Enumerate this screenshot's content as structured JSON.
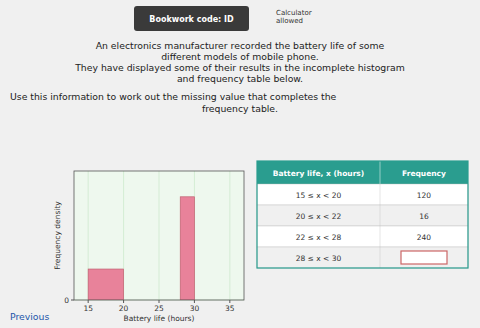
{
  "chart_data": {
    "type": "histogram",
    "title": [
      "An electronics manufacturer recorded the battery life of some",
      "different models of mobile phone.",
      "They have displayed some of their results in the incomplete histogram",
      "and frequency table below."
    ],
    "annotations": [
      "Bookwork code: ID",
      "Calculator\nallowed",
      "Use this information to work out the missing value that completes the",
      "frequency table.",
      "Previous"
    ],
    "bins": [
      15,
      20,
      28,
      30
    ],
    "values": [
      24,
      null,
      80
    ],
    "color": "#e8829a",
    "x_label": "Battery life (hours)",
    "y_label": "Frequency density",
    "xlim": [
      13,
      37
    ],
    "ylim": [
      0,
      100
    ],
    "xticks": [
      15,
      20,
      25,
      30,
      35
    ],
    "yticks": [
      0
    ],
    "grid": true,
    "table": {
      "columns": [
        "Battery life, x (hours)",
        "Frequency"
      ],
      "rows": [
        [
          "15 ≤ x < 20",
          120
        ],
        [
          "20 ≤ x < 22",
          16
        ],
        [
          "22 ≤ x < 28",
          240
        ],
        [
          "28 ≤ x < 30",
          null
        ]
      ]
    }
  }
}
